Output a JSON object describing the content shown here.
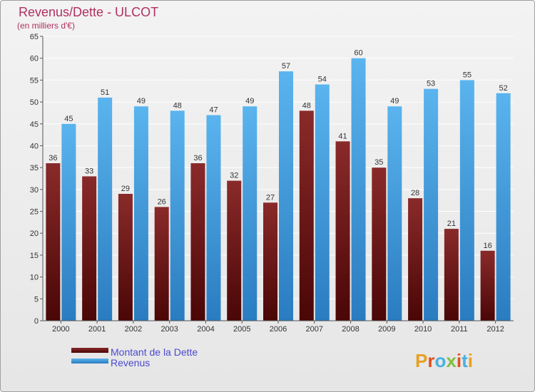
{
  "chart_data": {
    "type": "bar",
    "title": "Revenus/Dette - ULCOT",
    "subtitle": "(en milliers d'€)",
    "categories": [
      "2000",
      "2001",
      "2002",
      "2003",
      "2004",
      "2005",
      "2006",
      "2007",
      "2008",
      "2009",
      "2010",
      "2011",
      "2012"
    ],
    "series": [
      {
        "name": "Montant de la Dette",
        "color": "#7a1a1a",
        "values": [
          36,
          33,
          29,
          26,
          36,
          32,
          27,
          48,
          41,
          35,
          28,
          21,
          16
        ]
      },
      {
        "name": "Revenus",
        "color": "#4aa3e0",
        "values": [
          45,
          51,
          49,
          48,
          47,
          49,
          57,
          54,
          60,
          49,
          53,
          55,
          52
        ]
      }
    ],
    "ylim": [
      0,
      65
    ],
    "yticks": [
      0,
      5,
      10,
      15,
      20,
      25,
      30,
      35,
      40,
      45,
      50,
      55,
      60,
      65
    ],
    "grid": true,
    "legend_position": "bottom-left"
  },
  "logo": {
    "text": "Proxiti",
    "colors": [
      "#e8a020",
      "#e05020",
      "#4ab0e0",
      "#80c040",
      "#e05020",
      "#4ab0e0",
      "#e8a020"
    ]
  }
}
